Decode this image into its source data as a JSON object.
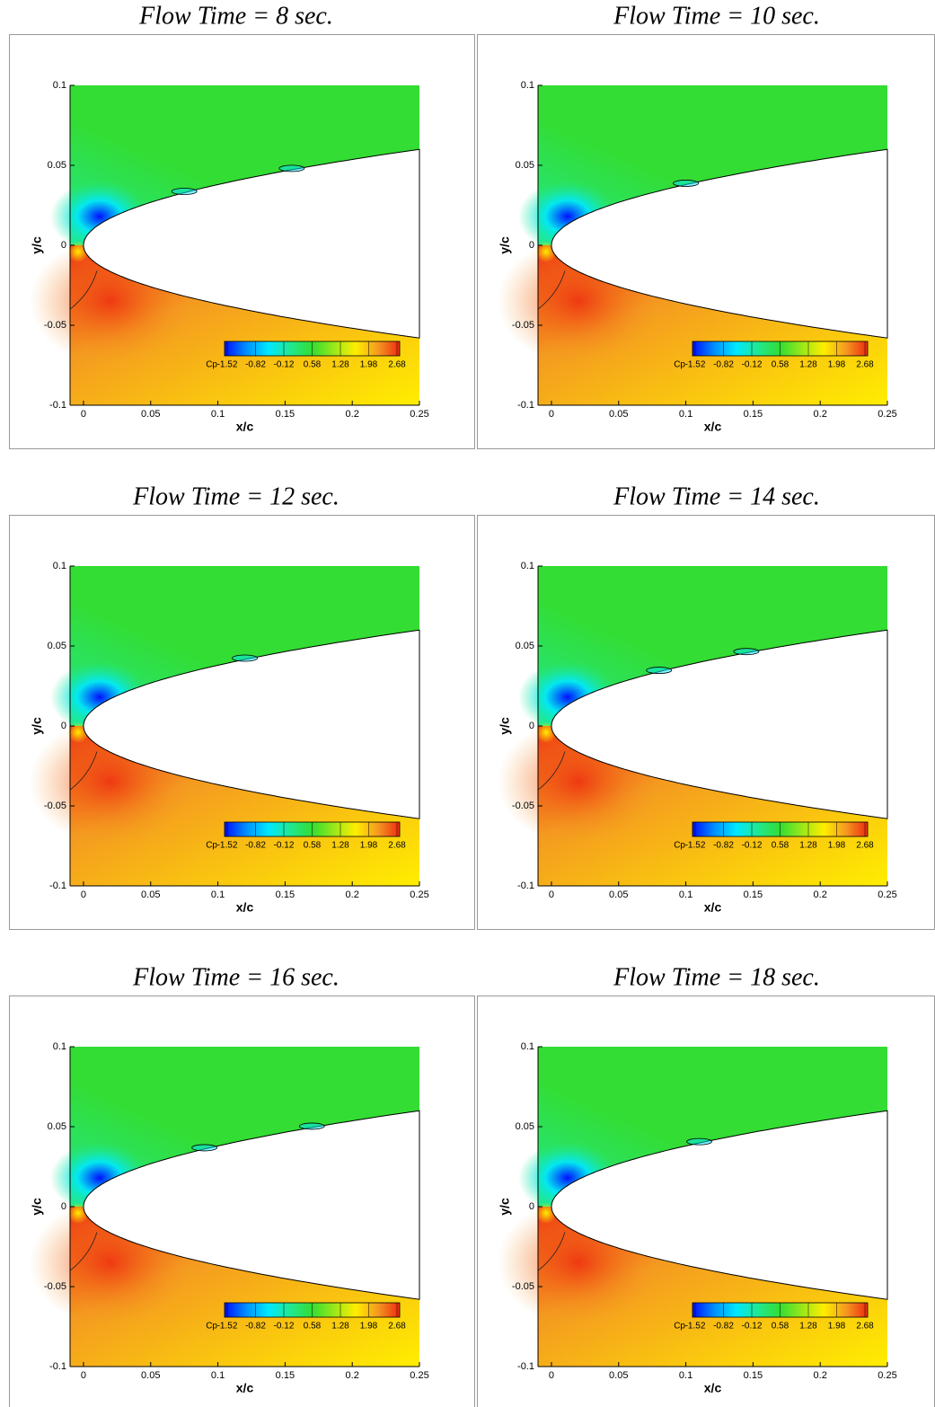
{
  "chart_data": [
    {
      "type": "contour",
      "title": "Flow Time = 8 sec.",
      "xlabel": "x/c",
      "ylabel": "y/c",
      "xlim": [
        -0.01,
        0.25
      ],
      "ylim": [
        -0.1,
        0.1
      ],
      "xticks": [
        0,
        0.05,
        0.1,
        0.15,
        0.2,
        0.25
      ],
      "yticks": [
        -0.1,
        -0.05,
        0,
        0.05,
        0.1
      ],
      "colorbar": {
        "label": "Cp",
        "ticks": [
          -1.52,
          -0.82,
          -0.12,
          0.58,
          1.28,
          1.98,
          2.68
        ],
        "colors": [
          "#0010ff",
          "#0090ff",
          "#00e8ff",
          "#20e890",
          "#33dd33",
          "#99e81a",
          "#ffee00",
          "#f49a20",
          "#ee2a10"
        ]
      },
      "cavity_x": [
        0.075,
        0.155
      ]
    },
    {
      "type": "contour",
      "title": "Flow Time = 10 sec.",
      "xlabel": "x/c",
      "ylabel": "y/c",
      "xlim": [
        -0.01,
        0.25
      ],
      "ylim": [
        -0.1,
        0.1
      ],
      "xticks": [
        0,
        0.05,
        0.1,
        0.15,
        0.2,
        0.25
      ],
      "yticks": [
        -0.1,
        -0.05,
        0,
        0.05,
        0.1
      ],
      "colorbar": {
        "label": "Cp",
        "ticks": [
          -1.52,
          -0.82,
          -0.12,
          0.58,
          1.28,
          1.98,
          2.68
        ],
        "colors": [
          "#0010ff",
          "#0090ff",
          "#00e8ff",
          "#20e890",
          "#33dd33",
          "#99e81a",
          "#ffee00",
          "#f49a20",
          "#ee2a10"
        ]
      },
      "cavity_x": [
        0.1
      ]
    },
    {
      "type": "contour",
      "title": "Flow Time = 12 sec.",
      "xlabel": "x/c",
      "ylabel": "y/c",
      "xlim": [
        -0.01,
        0.25
      ],
      "ylim": [
        -0.1,
        0.1
      ],
      "xticks": [
        0,
        0.05,
        0.1,
        0.15,
        0.2,
        0.25
      ],
      "yticks": [
        -0.1,
        -0.05,
        0,
        0.05,
        0.1
      ],
      "colorbar": {
        "label": "Cp",
        "ticks": [
          -1.52,
          -0.82,
          -0.12,
          0.58,
          1.28,
          1.98,
          2.68
        ],
        "colors": [
          "#0010ff",
          "#0090ff",
          "#00e8ff",
          "#20e890",
          "#33dd33",
          "#99e81a",
          "#ffee00",
          "#f49a20",
          "#ee2a10"
        ]
      },
      "cavity_x": [
        0.12
      ]
    },
    {
      "type": "contour",
      "title": "Flow Time = 14 sec.",
      "xlabel": "x/c",
      "ylabel": "y/c",
      "xlim": [
        -0.01,
        0.25
      ],
      "ylim": [
        -0.1,
        0.1
      ],
      "xticks": [
        0,
        0.05,
        0.1,
        0.15,
        0.2,
        0.25
      ],
      "yticks": [
        -0.1,
        -0.05,
        0,
        0.05,
        0.1
      ],
      "colorbar": {
        "label": "Cp",
        "ticks": [
          -1.52,
          -0.82,
          -0.12,
          0.58,
          1.28,
          1.98,
          2.68
        ],
        "colors": [
          "#0010ff",
          "#0090ff",
          "#00e8ff",
          "#20e890",
          "#33dd33",
          "#99e81a",
          "#ffee00",
          "#f49a20",
          "#ee2a10"
        ]
      },
      "cavity_x": [
        0.08,
        0.145
      ]
    },
    {
      "type": "contour",
      "title": "Flow Time = 16 sec.",
      "xlabel": "x/c",
      "ylabel": "y/c",
      "xlim": [
        -0.01,
        0.25
      ],
      "ylim": [
        -0.1,
        0.1
      ],
      "xticks": [
        0,
        0.05,
        0.1,
        0.15,
        0.2,
        0.25
      ],
      "yticks": [
        -0.1,
        -0.05,
        0,
        0.05,
        0.1
      ],
      "colorbar": {
        "label": "Cp",
        "ticks": [
          -1.52,
          -0.82,
          -0.12,
          0.58,
          1.28,
          1.98,
          2.68
        ],
        "colors": [
          "#0010ff",
          "#0090ff",
          "#00e8ff",
          "#20e890",
          "#33dd33",
          "#99e81a",
          "#ffee00",
          "#f49a20",
          "#ee2a10"
        ]
      },
      "cavity_x": [
        0.09,
        0.17
      ]
    },
    {
      "type": "contour",
      "title": "Flow Time = 18 sec.",
      "xlabel": "x/c",
      "ylabel": "y/c",
      "xlim": [
        -0.01,
        0.25
      ],
      "ylim": [
        -0.1,
        0.1
      ],
      "xticks": [
        0,
        0.05,
        0.1,
        0.15,
        0.2,
        0.25
      ],
      "yticks": [
        -0.1,
        -0.05,
        0,
        0.05,
        0.1
      ],
      "colorbar": {
        "label": "Cp",
        "ticks": [
          -1.52,
          -0.82,
          -0.12,
          0.58,
          1.28,
          1.98,
          2.68
        ],
        "colors": [
          "#0010ff",
          "#0090ff",
          "#00e8ff",
          "#20e890",
          "#33dd33",
          "#99e81a",
          "#ffee00",
          "#f49a20",
          "#ee2a10"
        ]
      },
      "cavity_x": [
        0.11
      ]
    }
  ]
}
